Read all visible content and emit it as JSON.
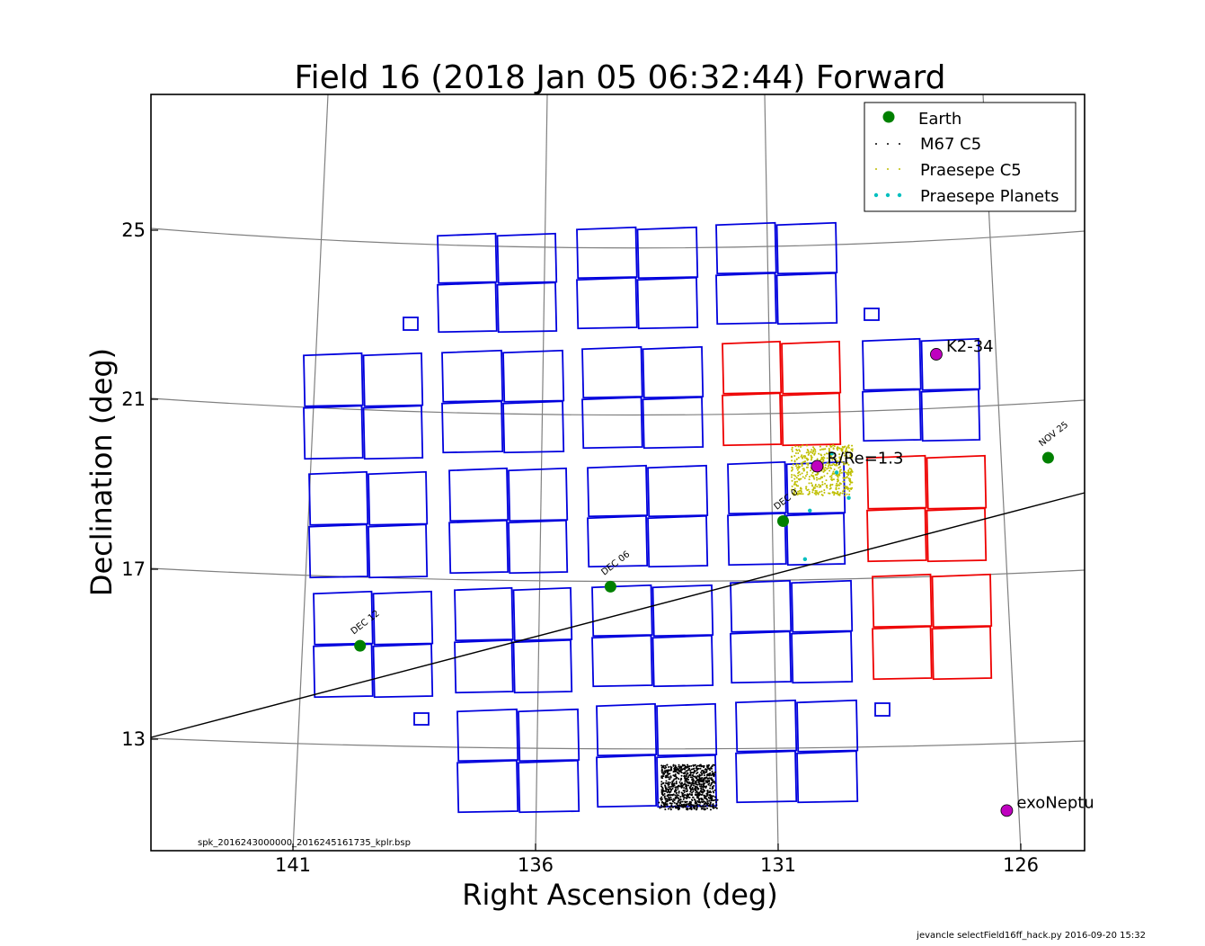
{
  "chart_data": {
    "type": "scatter",
    "title": "Field 16 (2018 Jan 05 06:32:44) Forward",
    "xlabel": "Right Ascension (deg)",
    "ylabel": "Declination (deg)",
    "xlim": [
      143.9,
      124.7
    ],
    "ylim": [
      10.35,
      28.25
    ],
    "x_ticks": [
      141,
      136,
      131,
      126
    ],
    "y_ticks": [
      25,
      21,
      17,
      13
    ],
    "grid": true,
    "legend_position": "top-right",
    "legend": [
      "Earth",
      "M67 C5",
      "Praesepe C5",
      "Praesepe Planets"
    ],
    "ecliptic": [
      [
        143.9,
        13.0
      ],
      [
        124.7,
        18.55
      ]
    ],
    "earth_positions": [
      {
        "label": "DEC 12",
        "ra": 139.6,
        "dec": 15.2
      },
      {
        "label": "DEC 06",
        "ra": 134.45,
        "dec": 16.6
      },
      {
        "label": "DEC 0",
        "ra": 130.9,
        "dec": 18.15
      },
      {
        "label": "NOV 25",
        "ra": 125.45,
        "dec": 19.65
      }
    ],
    "labeled_targets": [
      {
        "label": "K2-34",
        "ra": 127.75,
        "dec": 22.1
      },
      {
        "label": "R/Re=1.3",
        "ra": 130.2,
        "dec": 19.45
      },
      {
        "label": "exoNeptu",
        "ra": 126.3,
        "dec": 11.3
      }
    ],
    "m67_center": {
      "ra": 132.85,
      "dec": 11.85
    },
    "praesepe_center": {
      "ra": 130.1,
      "dec": 19.35
    },
    "praesepe_planets": [
      {
        "ra": 129.9,
        "dec": 19.75
      },
      {
        "ra": 129.8,
        "dec": 19.3
      },
      {
        "ra": 129.55,
        "dec": 18.7
      },
      {
        "ra": 130.35,
        "dec": 18.4
      },
      {
        "ra": 130.45,
        "dec": 17.25
      }
    ],
    "footer_left": "spk_2016243000000_2016245161735_kplr.bsp",
    "footer_right": "jevancle selectField16ff_hack.py 2016-09-20 15:32"
  }
}
